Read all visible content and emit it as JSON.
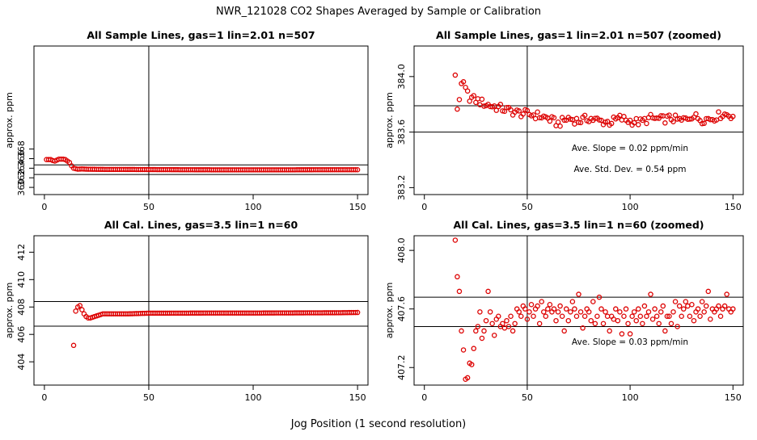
{
  "title": "NWR_121028  CO2 Shapes Averaged by Sample or Calibration",
  "xlabel": "Jog Position (1 second resolution)",
  "colors": {
    "points": "#dd0000",
    "frame": "#000000"
  },
  "chart_data": [
    {
      "type": "scatter",
      "title": "All Sample Lines, gas=1 lin=2.01 n=507",
      "ylabel": "approx. ppm",
      "xlim": [
        -5,
        155
      ],
      "ylim": [
        358.5,
        389.5
      ],
      "xticks": [
        0,
        50,
        100,
        150
      ],
      "yticks": [
        360,
        362,
        364,
        366,
        368
      ],
      "ytick_labels": [
        "360",
        "362",
        "364",
        "366",
        "368"
      ],
      "hlines": [
        364.7,
        362.7
      ],
      "vline": 50,
      "annotations": [],
      "curve": [
        [
          1,
          365.8
        ],
        [
          2,
          365.8
        ],
        [
          3,
          365.8
        ],
        [
          4,
          365.6
        ],
        [
          5,
          365.5
        ],
        [
          6,
          365.7
        ],
        [
          7,
          365.9
        ],
        [
          8,
          365.9
        ],
        [
          9,
          365.9
        ],
        [
          10,
          365.8
        ],
        [
          11,
          365.5
        ],
        [
          12,
          365.2
        ],
        [
          13,
          364.5
        ],
        [
          14,
          364.0
        ],
        [
          15,
          363.9
        ],
        [
          16,
          363.8
        ],
        [
          18,
          363.85
        ],
        [
          20,
          363.8
        ],
        [
          25,
          363.77
        ],
        [
          30,
          363.75
        ],
        [
          40,
          363.74
        ],
        [
          50,
          363.72
        ],
        [
          60,
          363.7
        ],
        [
          70,
          363.68
        ],
        [
          90,
          363.66
        ],
        [
          110,
          363.66
        ],
        [
          130,
          363.68
        ],
        [
          150,
          363.68
        ]
      ]
    },
    {
      "type": "scatter",
      "title": "All Sample Lines, gas=1 lin=2.01 n=507 (zoomed)",
      "ylabel": "approx. ppm",
      "xlim": [
        -5,
        155
      ],
      "ylim": [
        383.15,
        384.22
      ],
      "xticks": [
        0,
        50,
        100,
        150
      ],
      "yticks": [
        383.2,
        383.6,
        384.0
      ],
      "ytick_labels": [
        "383.2",
        "383.6",
        "384.0"
      ],
      "hlines": [
        383.79,
        383.6
      ],
      "vline": 50,
      "annotations": [
        "Ave. Slope =  0.02  ppm/min",
        "Ave. Std. Dev. =  0.54  ppm"
      ],
      "curve": [
        [
          15,
          384.02
        ],
        [
          16,
          383.77
        ],
        [
          17,
          383.85
        ],
        [
          18,
          383.92
        ],
        [
          19,
          383.95
        ],
        [
          20,
          383.9
        ],
        [
          22,
          383.85
        ],
        [
          25,
          383.83
        ],
        [
          30,
          383.8
        ],
        [
          35,
          383.78
        ],
        [
          40,
          383.76
        ],
        [
          45,
          383.74
        ],
        [
          50,
          383.73
        ],
        [
          55,
          383.72
        ],
        [
          60,
          383.7
        ],
        [
          65,
          383.66
        ],
        [
          70,
          383.7
        ],
        [
          75,
          383.68
        ],
        [
          80,
          383.7
        ],
        [
          85,
          383.68
        ],
        [
          90,
          383.67
        ],
        [
          95,
          383.7
        ],
        [
          100,
          383.68
        ],
        [
          105,
          383.67
        ],
        [
          110,
          383.7
        ],
        [
          115,
          383.69
        ],
        [
          120,
          383.7
        ],
        [
          125,
          383.68
        ],
        [
          130,
          383.72
        ],
        [
          135,
          383.69
        ],
        [
          140,
          383.7
        ],
        [
          145,
          383.73
        ],
        [
          150,
          383.72
        ]
      ],
      "noise": 0.03
    },
    {
      "type": "scatter",
      "title": "All Cal. Lines, gas=3.5 lin=1 n=60",
      "ylabel": "approx. ppm",
      "xlim": [
        -5,
        155
      ],
      "ylim": [
        402.3,
        413.2
      ],
      "xticks": [
        0,
        50,
        100,
        150
      ],
      "yticks": [
        404,
        406,
        408,
        410,
        412
      ],
      "ytick_labels": [
        "404",
        "406",
        "408",
        "410",
        "412"
      ],
      "hlines": [
        408.4,
        406.6
      ],
      "vline": 50,
      "annotations": [],
      "outliers": [
        [
          14,
          405.2
        ]
      ],
      "curve": [
        [
          15,
          407.7
        ],
        [
          16,
          408.0
        ],
        [
          17,
          408.1
        ],
        [
          18,
          407.8
        ],
        [
          19,
          407.5
        ],
        [
          20,
          407.3
        ],
        [
          21,
          407.2
        ],
        [
          22,
          407.2
        ],
        [
          24,
          407.3
        ],
        [
          26,
          407.4
        ],
        [
          28,
          407.5
        ],
        [
          30,
          407.5
        ],
        [
          35,
          407.5
        ],
        [
          40,
          407.5
        ],
        [
          50,
          407.55
        ],
        [
          60,
          407.55
        ],
        [
          80,
          407.56
        ],
        [
          100,
          407.56
        ],
        [
          120,
          407.57
        ],
        [
          140,
          407.58
        ],
        [
          150,
          407.6
        ]
      ]
    },
    {
      "type": "scatter",
      "title": "All Cal. Lines, gas=3.5 lin=1 n=60 (zoomed)",
      "ylabel": "approx. ppm",
      "xlim": [
        -5,
        155
      ],
      "ylim": [
        407.08,
        408.1
      ],
      "xticks": [
        0,
        50,
        100,
        150
      ],
      "yticks": [
        407.2,
        407.6,
        408.0
      ],
      "ytick_labels": [
        "407.2",
        "407.6",
        "408.0"
      ],
      "hlines": [
        407.68,
        407.48
      ],
      "vline": 50,
      "annotations": [
        "Ave. Slope =  0.03  ppm/min"
      ],
      "points": [
        [
          15,
          408.07
        ],
        [
          16,
          407.82
        ],
        [
          17,
          407.72
        ],
        [
          18,
          407.45
        ],
        [
          19,
          407.32
        ],
        [
          20,
          407.12
        ],
        [
          21,
          407.13
        ],
        [
          22,
          407.23
        ],
        [
          23,
          407.22
        ],
        [
          24,
          407.33
        ],
        [
          25,
          407.45
        ],
        [
          26,
          407.48
        ],
        [
          27,
          407.58
        ],
        [
          28,
          407.4
        ],
        [
          29,
          407.45
        ],
        [
          30,
          407.52
        ],
        [
          31,
          407.72
        ],
        [
          32,
          407.58
        ],
        [
          33,
          407.5
        ],
        [
          34,
          407.42
        ],
        [
          35,
          407.53
        ],
        [
          36,
          407.55
        ],
        [
          37,
          407.48
        ],
        [
          38,
          407.5
        ],
        [
          39,
          407.47
        ],
        [
          40,
          407.52
        ],
        [
          41,
          407.48
        ],
        [
          42,
          407.55
        ],
        [
          43,
          407.45
        ],
        [
          44,
          407.5
        ],
        [
          45,
          407.6
        ],
        [
          46,
          407.58
        ],
        [
          47,
          407.55
        ],
        [
          48,
          407.62
        ],
        [
          49,
          407.6
        ],
        [
          50,
          407.53
        ],
        [
          51,
          407.58
        ],
        [
          52,
          407.63
        ],
        [
          53,
          407.55
        ],
        [
          54,
          407.6
        ],
        [
          55,
          407.62
        ],
        [
          56,
          407.5
        ],
        [
          57,
          407.65
        ],
        [
          58,
          407.58
        ],
        [
          59,
          407.55
        ],
        [
          60,
          407.6
        ],
        [
          61,
          407.63
        ],
        [
          62,
          407.58
        ],
        [
          63,
          407.6
        ],
        [
          64,
          407.52
        ],
        [
          65,
          407.58
        ],
        [
          66,
          407.62
        ],
        [
          67,
          407.55
        ],
        [
          68,
          407.45
        ],
        [
          69,
          407.6
        ],
        [
          70,
          407.52
        ],
        [
          71,
          407.58
        ],
        [
          72,
          407.65
        ],
        [
          73,
          407.6
        ],
        [
          74,
          407.55
        ],
        [
          75,
          407.7
        ],
        [
          76,
          407.58
        ],
        [
          77,
          407.47
        ],
        [
          78,
          407.55
        ],
        [
          79,
          407.6
        ],
        [
          80,
          407.58
        ],
        [
          81,
          407.52
        ],
        [
          82,
          407.65
        ],
        [
          83,
          407.5
        ],
        [
          84,
          407.55
        ],
        [
          85,
          407.68
        ],
        [
          86,
          407.6
        ],
        [
          87,
          407.5
        ],
        [
          88,
          407.58
        ],
        [
          89,
          407.55
        ],
        [
          90,
          407.45
        ],
        [
          91,
          407.55
        ],
        [
          92,
          407.53
        ],
        [
          93,
          407.6
        ],
        [
          94,
          407.52
        ],
        [
          95,
          407.58
        ],
        [
          96,
          407.43
        ],
        [
          97,
          407.55
        ],
        [
          98,
          407.6
        ],
        [
          99,
          407.5
        ],
        [
          100,
          407.43
        ],
        [
          101,
          407.55
        ],
        [
          102,
          407.58
        ],
        [
          103,
          407.52
        ],
        [
          104,
          407.6
        ],
        [
          105,
          407.55
        ],
        [
          106,
          407.5
        ],
        [
          107,
          407.62
        ],
        [
          108,
          407.55
        ],
        [
          109,
          407.58
        ],
        [
          110,
          407.7
        ],
        [
          111,
          407.53
        ],
        [
          112,
          407.6
        ],
        [
          113,
          407.55
        ],
        [
          114,
          407.5
        ],
        [
          115,
          407.58
        ],
        [
          116,
          407.62
        ],
        [
          117,
          407.45
        ],
        [
          118,
          407.55
        ],
        [
          119,
          407.55
        ],
        [
          120,
          407.5
        ],
        [
          121,
          407.58
        ],
        [
          122,
          407.65
        ],
        [
          123,
          407.48
        ],
        [
          124,
          407.62
        ],
        [
          125,
          407.55
        ],
        [
          126,
          407.6
        ],
        [
          127,
          407.65
        ],
        [
          128,
          407.62
        ],
        [
          129,
          407.55
        ],
        [
          130,
          407.63
        ],
        [
          131,
          407.52
        ],
        [
          132,
          407.58
        ],
        [
          133,
          407.6
        ],
        [
          134,
          407.55
        ],
        [
          135,
          407.65
        ],
        [
          136,
          407.58
        ],
        [
          137,
          407.62
        ],
        [
          138,
          407.72
        ],
        [
          139,
          407.53
        ],
        [
          140,
          407.6
        ],
        [
          141,
          407.58
        ],
        [
          142,
          407.6
        ],
        [
          143,
          407.62
        ],
        [
          144,
          407.55
        ],
        [
          145,
          407.6
        ],
        [
          146,
          407.62
        ],
        [
          147,
          407.7
        ],
        [
          148,
          407.6
        ],
        [
          149,
          407.58
        ],
        [
          150,
          407.6
        ]
      ]
    }
  ]
}
